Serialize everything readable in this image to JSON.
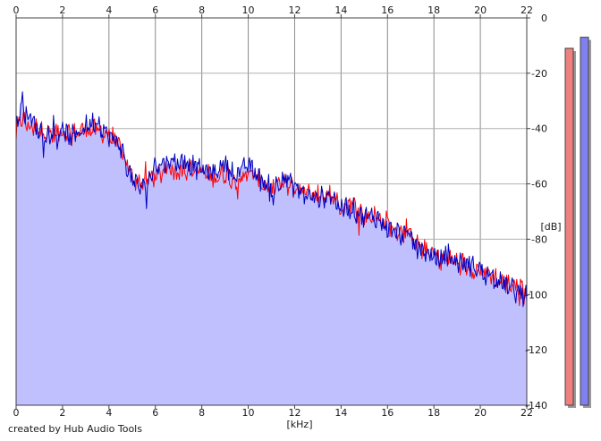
{
  "credit": "created by Hub Audio Tools",
  "chart_data": {
    "type": "line",
    "xlabel": "[kHz]",
    "ylabel": "[dB]",
    "xlim": [
      0,
      22
    ],
    "ylim": [
      -140,
      0
    ],
    "x_ticks": [
      0,
      2,
      4,
      6,
      8,
      10,
      12,
      14,
      16,
      18,
      20,
      22
    ],
    "y_ticks": [
      0,
      -20,
      -40,
      -60,
      -80,
      -100,
      -120,
      -140
    ],
    "y_tick_labels": [
      "0",
      "-20",
      "-40",
      "-60",
      "-80",
      "-100",
      "-120",
      "-140"
    ],
    "grid": true,
    "fill_color": "#c0c0ff",
    "series": [
      {
        "color": "#ff0000",
        "x": [
          0.0,
          0.2,
          0.5,
          1.0,
          1.5,
          2.0,
          2.5,
          3.0,
          3.5,
          4.0,
          4.5,
          5.0,
          5.5,
          6.0,
          6.5,
          7.0,
          7.5,
          8.0,
          8.5,
          9.0,
          9.5,
          10.0,
          10.5,
          11.0,
          11.5,
          12.0,
          12.5,
          13.0,
          13.5,
          14.0,
          14.5,
          15.0,
          15.5,
          16.0,
          16.5,
          17.0,
          17.5,
          18.0,
          18.5,
          19.0,
          19.5,
          20.0,
          20.5,
          21.0,
          21.5,
          22.0
        ],
        "values": [
          -43,
          -36,
          -39,
          -40,
          -42,
          -41,
          -42,
          -40,
          -41,
          -42,
          -47,
          -58,
          -59,
          -57,
          -55,
          -55,
          -54,
          -56,
          -58,
          -56,
          -59,
          -56,
          -59,
          -62,
          -60,
          -62,
          -62,
          -66,
          -63,
          -68,
          -67,
          -71,
          -72,
          -74,
          -77,
          -78,
          -84,
          -85,
          -88,
          -88,
          -90,
          -91,
          -93,
          -96,
          -96,
          -99
        ]
      },
      {
        "color": "#0000c0",
        "x": [
          0.0,
          0.2,
          0.5,
          1.0,
          1.5,
          2.0,
          2.5,
          3.0,
          3.5,
          4.0,
          4.5,
          5.0,
          5.5,
          6.0,
          6.5,
          7.0,
          7.5,
          8.0,
          8.5,
          9.0,
          9.5,
          10.0,
          10.5,
          11.0,
          11.5,
          12.0,
          12.5,
          13.0,
          13.5,
          14.0,
          14.5,
          15.0,
          15.5,
          16.0,
          16.5,
          17.0,
          17.5,
          18.0,
          18.5,
          19.0,
          19.5,
          20.0,
          20.5,
          21.0,
          21.5,
          22.0
        ],
        "values": [
          -40,
          -32,
          -35,
          -41,
          -42,
          -42,
          -43,
          -39,
          -37,
          -43,
          -46,
          -59,
          -62,
          -54,
          -52,
          -52,
          -53,
          -55,
          -56,
          -53,
          -57,
          -53,
          -58,
          -63,
          -57,
          -61,
          -64,
          -66,
          -63,
          -69,
          -69,
          -72,
          -72,
          -76,
          -78,
          -79,
          -84,
          -87,
          -87,
          -88,
          -89,
          -91,
          -94,
          -96,
          -99,
          -100
        ]
      }
    ],
    "level_meters": [
      {
        "color": "#f08080",
        "value": -11
      },
      {
        "color": "#8080f0",
        "value": -7
      }
    ]
  }
}
